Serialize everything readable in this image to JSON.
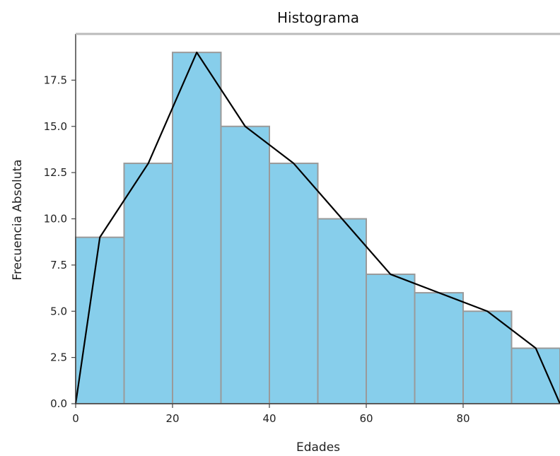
{
  "chart_data": {
    "type": "bar",
    "title": "Histograma",
    "xlabel": "Edades",
    "ylabel": "Frecuencia Absoluta",
    "bins": [
      [
        0,
        10
      ],
      [
        10,
        20
      ],
      [
        20,
        30
      ],
      [
        30,
        40
      ],
      [
        40,
        50
      ],
      [
        50,
        60
      ],
      [
        60,
        70
      ],
      [
        70,
        80
      ],
      [
        80,
        90
      ],
      [
        90,
        100
      ]
    ],
    "values": [
      9,
      13,
      19,
      15,
      13,
      10,
      7,
      6,
      5,
      3
    ],
    "polygon": {
      "x": [
        0,
        5,
        15,
        25,
        35,
        45,
        55,
        65,
        75,
        85,
        95,
        100
      ],
      "y": [
        0,
        9,
        13,
        19,
        15,
        13,
        10,
        7,
        6,
        5,
        3,
        0
      ]
    },
    "xticks": [
      0,
      20,
      40,
      60,
      80
    ],
    "xtick_labels": [
      "0",
      "20",
      "40",
      "60",
      "80"
    ],
    "yticks": [
      0,
      2.5,
      5,
      7.5,
      10,
      12.5,
      15,
      17.5
    ],
    "ytick_labels": [
      "0.0",
      "2.5",
      "5.0",
      "7.5",
      "10.0",
      "12.5",
      "15.0",
      "17.5"
    ],
    "xlim": [
      0,
      100
    ],
    "ylim": [
      0,
      20
    ],
    "grid": false,
    "colors": {
      "bar_fill": "#87CEEB",
      "bar_edge": "#9a9a9a",
      "line": "#000000",
      "spine": "#444444"
    }
  }
}
